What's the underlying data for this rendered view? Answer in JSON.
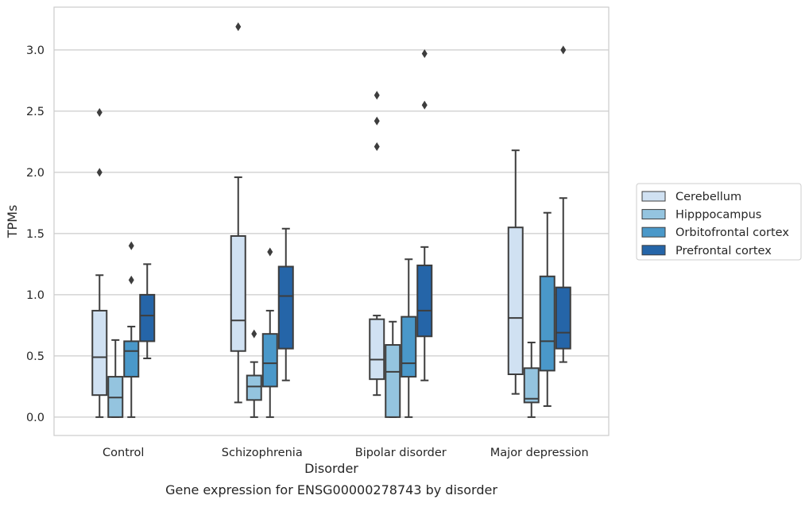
{
  "chart_data": {
    "type": "box",
    "caption": "Gene expression for ENSG00000278743 by disorder",
    "xlabel": "Disorder",
    "ylabel": "TPMs",
    "ylim": [
      -0.15,
      3.35
    ],
    "yticks": [
      0.0,
      0.5,
      1.0,
      1.5,
      2.0,
      2.5,
      3.0
    ],
    "ytick_labels": [
      "0.0",
      "0.5",
      "1.0",
      "1.5",
      "2.0",
      "2.5",
      "3.0"
    ],
    "grid": "horizontal",
    "legend_position": "right",
    "categories": [
      "Control",
      "Schizophrenia",
      "Bipolar disorder",
      "Major depression"
    ],
    "series": [
      {
        "name": "Cerebellum",
        "color": "#d0e1f2",
        "boxes": [
          {
            "whislo": 0.0,
            "q1": 0.18,
            "med": 0.49,
            "q3": 0.87,
            "whishi": 1.16,
            "fliers": [
              2.0,
              2.49
            ]
          },
          {
            "whislo": 0.12,
            "q1": 0.54,
            "med": 0.79,
            "q3": 1.48,
            "whishi": 1.96,
            "fliers": [
              3.19
            ]
          },
          {
            "whislo": 0.18,
            "q1": 0.31,
            "med": 0.47,
            "q3": 0.8,
            "whishi": 0.83,
            "fliers": [
              2.21,
              2.42,
              2.63
            ]
          },
          {
            "whislo": 0.19,
            "q1": 0.35,
            "med": 0.81,
            "q3": 1.55,
            "whishi": 2.18,
            "fliers": []
          }
        ]
      },
      {
        "name": "Hipppocampus",
        "color": "#94c4df",
        "boxes": [
          {
            "whislo": 0.0,
            "q1": 0.0,
            "med": 0.16,
            "q3": 0.33,
            "whishi": 0.63,
            "fliers": []
          },
          {
            "whislo": 0.0,
            "q1": 0.14,
            "med": 0.25,
            "q3": 0.34,
            "whishi": 0.45,
            "fliers": [
              0.68
            ]
          },
          {
            "whislo": 0.0,
            "q1": 0.0,
            "med": 0.37,
            "q3": 0.59,
            "whishi": 0.78,
            "fliers": []
          },
          {
            "whislo": 0.0,
            "q1": 0.12,
            "med": 0.15,
            "q3": 0.4,
            "whishi": 0.61,
            "fliers": []
          }
        ]
      },
      {
        "name": "Orbitofrontal cortex",
        "color": "#4a98c9",
        "boxes": [
          {
            "whislo": 0.0,
            "q1": 0.33,
            "med": 0.54,
            "q3": 0.62,
            "whishi": 0.74,
            "fliers": [
              1.12,
              1.4
            ]
          },
          {
            "whislo": 0.0,
            "q1": 0.25,
            "med": 0.44,
            "q3": 0.68,
            "whishi": 0.87,
            "fliers": [
              1.35
            ]
          },
          {
            "whislo": 0.0,
            "q1": 0.33,
            "med": 0.44,
            "q3": 0.82,
            "whishi": 1.29,
            "fliers": []
          },
          {
            "whislo": 0.09,
            "q1": 0.38,
            "med": 0.62,
            "q3": 1.15,
            "whishi": 1.67,
            "fliers": []
          }
        ]
      },
      {
        "name": "Prefrontal cortex",
        "color": "#2565a8",
        "boxes": [
          {
            "whislo": 0.48,
            "q1": 0.62,
            "med": 0.83,
            "q3": 1.0,
            "whishi": 1.25,
            "fliers": []
          },
          {
            "whislo": 0.3,
            "q1": 0.56,
            "med": 0.99,
            "q3": 1.23,
            "whishi": 1.54,
            "fliers": []
          },
          {
            "whislo": 0.3,
            "q1": 0.66,
            "med": 0.87,
            "q3": 1.24,
            "whishi": 1.39,
            "fliers": [
              2.55,
              2.97
            ]
          },
          {
            "whislo": 0.45,
            "q1": 0.56,
            "med": 0.69,
            "q3": 1.06,
            "whishi": 1.79,
            "fliers": [
              3.0
            ]
          }
        ]
      }
    ]
  }
}
